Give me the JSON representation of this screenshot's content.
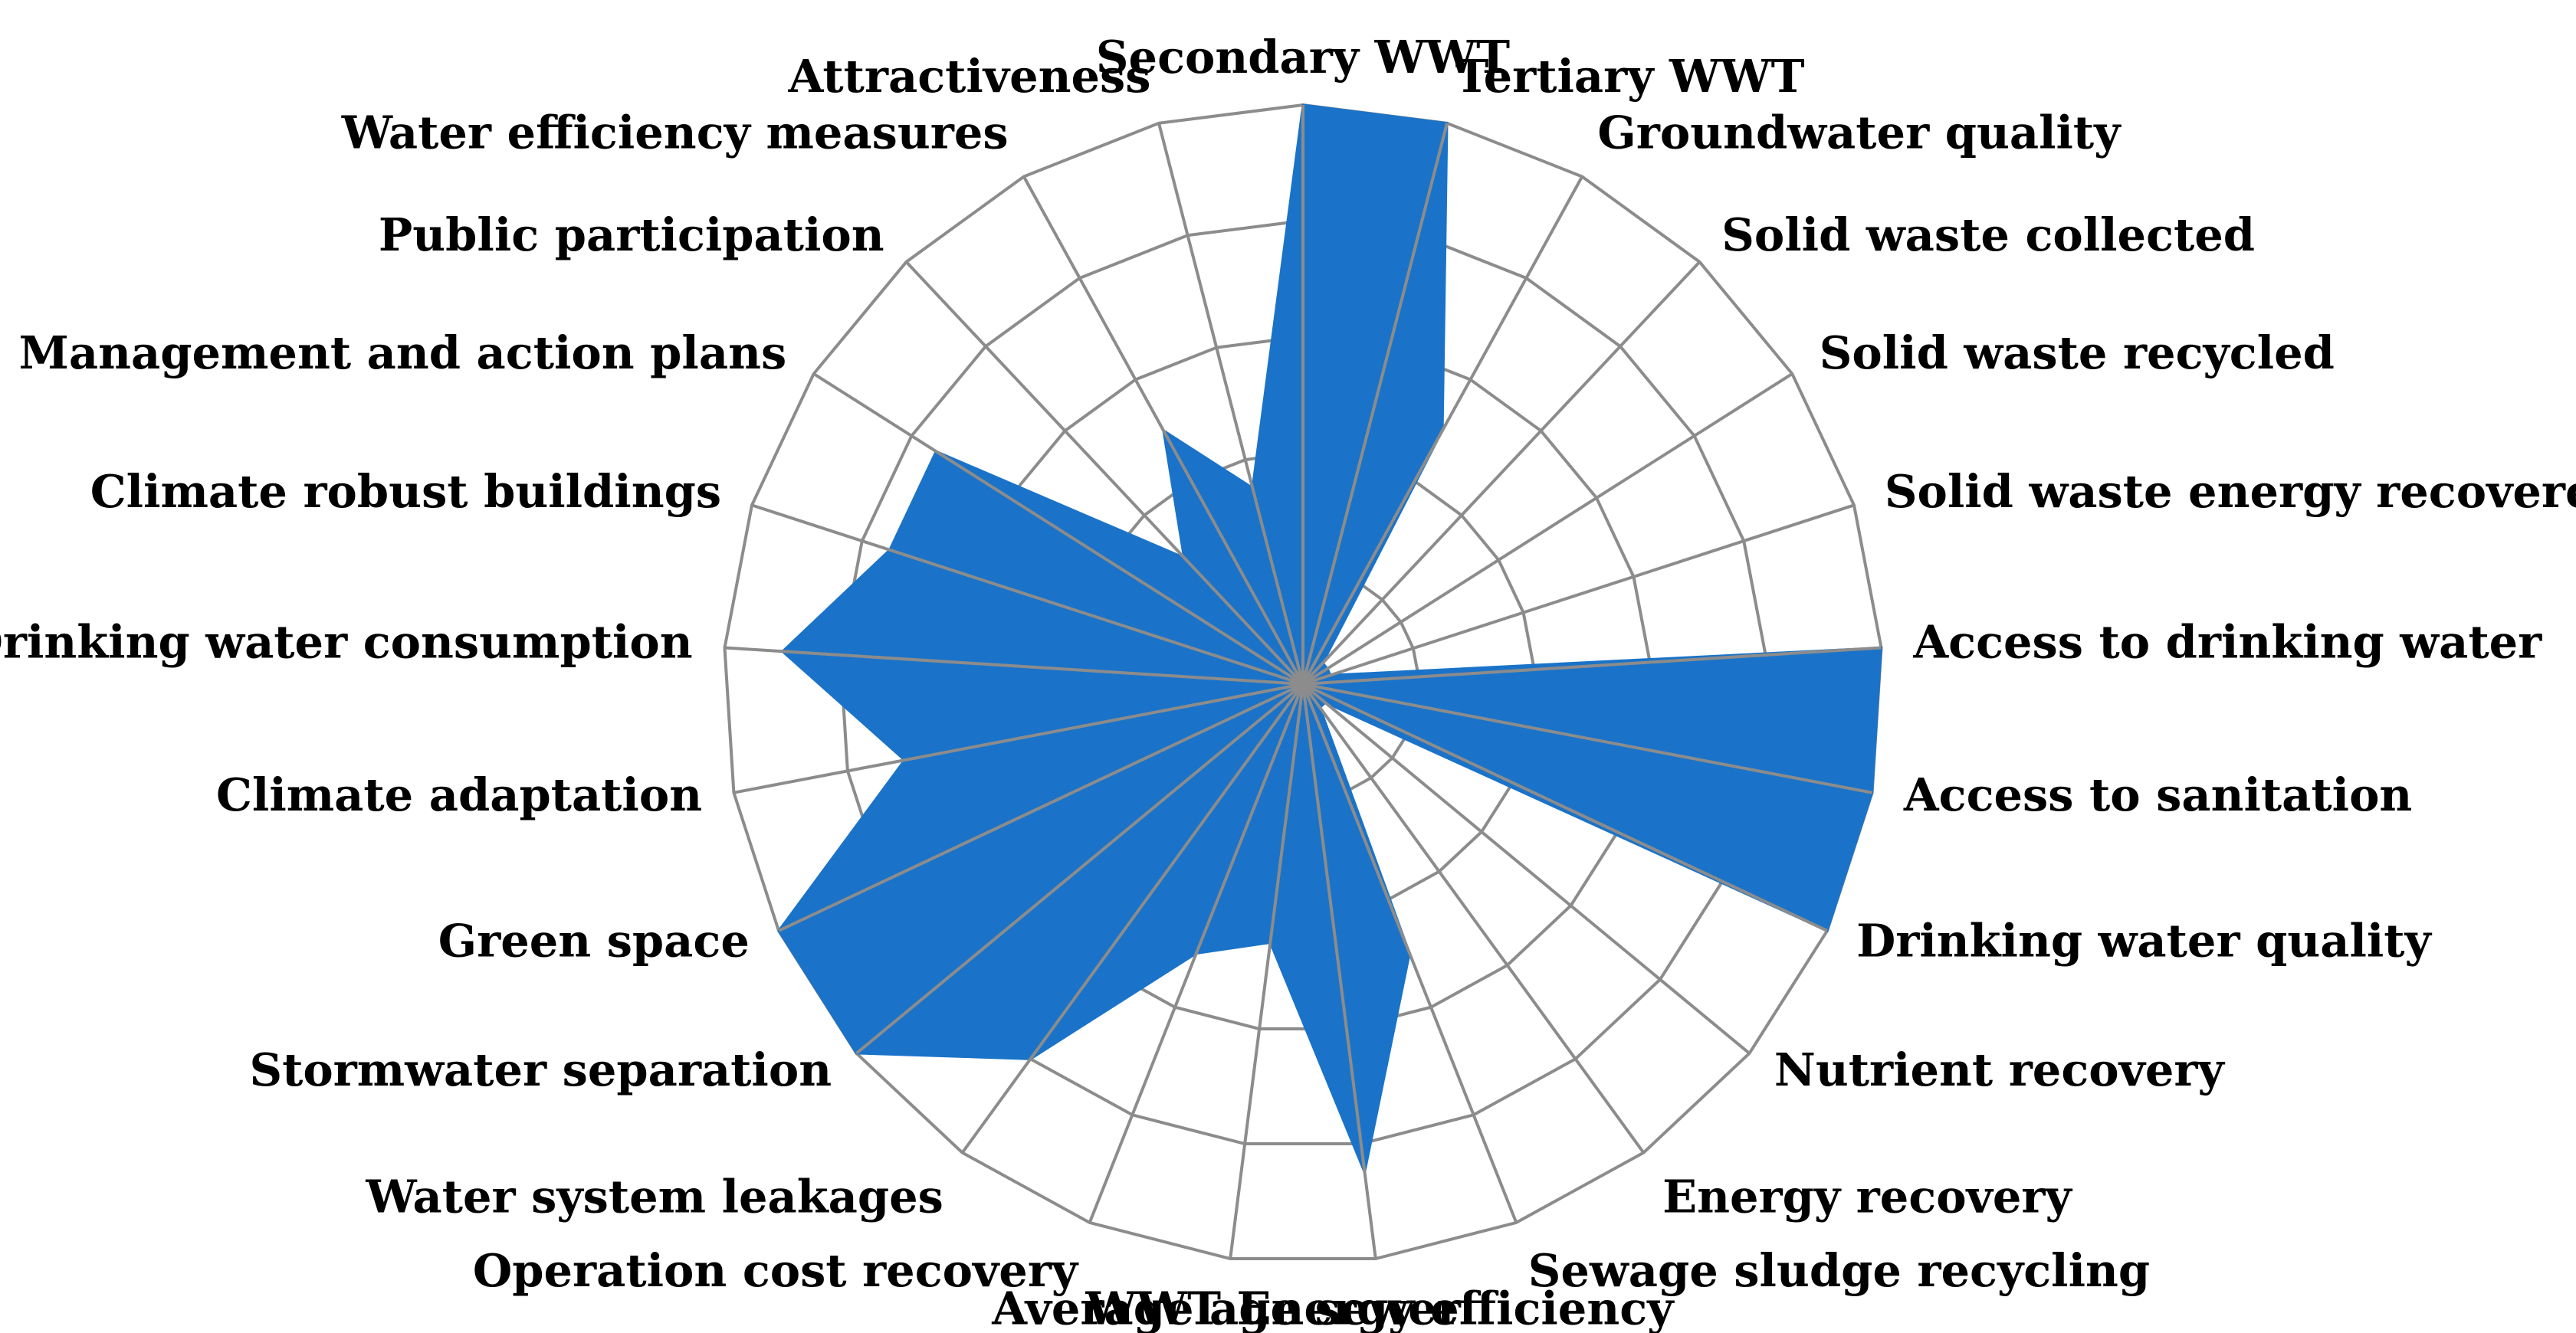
{
  "chart_data": {
    "type": "radar",
    "scale_max": 10,
    "grid_levels": 5,
    "grid_color": "#8c8c8c",
    "fill_color": "#1a73c8",
    "legend": "none",
    "categories": [
      "Secondary WWT",
      "Tertiary WWT",
      "Groundwater quality",
      "Solid waste collected",
      "Solid waste recycled",
      "Solid waste energy recovered",
      "Access to drinking water",
      "Access to sanitation",
      "Drinking water quality",
      "Nutrient recovery",
      "Energy recovery",
      "Sewage sludge recycling",
      "WWT Energy efficiency",
      "Average age sewer",
      "Operation cost recovery",
      "Water system leakages",
      "Stormwater separation",
      "Green space",
      "Climate adaptation",
      "Drinking water consumption",
      "Climate robust buildings",
      "Management and action plans",
      "Public participation",
      "Water efficiency measures",
      "Attractiveness"
    ],
    "values": [
      10,
      10,
      5,
      0.5,
      0.5,
      0.5,
      10,
      10,
      10,
      0.5,
      0.5,
      5,
      8.5,
      4.5,
      5,
      8,
      10,
      10,
      7,
      9,
      7.5,
      7.5,
      3,
      5,
      3.5
    ]
  }
}
